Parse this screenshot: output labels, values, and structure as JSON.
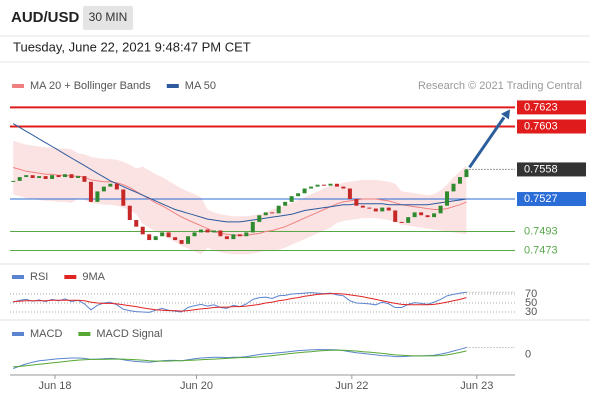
{
  "header": {
    "symbol": "AUD/USD",
    "timeframe": "30 MIN",
    "timestamp": "Tuesday, June 22, 2021 9:48:47 PM CET",
    "copyright": "Research © 2021 Trading Central"
  },
  "chart_data": [
    {
      "type": "candlestick",
      "up_color": "#2f8a2f",
      "down_color": "#c62828",
      "xlim": [
        -0.5,
        77.5
      ],
      "ylim": [
        0.7461,
        0.7636
      ],
      "values": [
        0.7546,
        0.755,
        0.7552,
        0.7549,
        0.7551,
        0.7548,
        0.7552,
        0.755,
        0.7553,
        0.7549,
        0.7551,
        0.7545,
        0.7524,
        0.7535,
        0.754,
        0.7543,
        0.7537,
        0.752,
        0.7505,
        0.7498,
        0.749,
        0.7484,
        0.7488,
        0.7492,
        0.7487,
        0.7484,
        0.748,
        0.7488,
        0.7492,
        0.7495,
        0.7492,
        0.7494,
        0.7488,
        0.7485,
        0.749,
        0.7488,
        0.7492,
        0.7503,
        0.751,
        0.7513,
        0.7512,
        0.752,
        0.7524,
        0.753,
        0.7533,
        0.7538,
        0.754,
        0.7542,
        0.7541,
        0.7543,
        0.754,
        0.7538,
        0.7527,
        0.752,
        0.7518,
        0.7517,
        0.7514,
        0.7518,
        0.7515,
        0.7503,
        0.7502,
        0.7508,
        0.7513,
        0.751,
        0.7508,
        0.7512,
        0.752,
        0.7535,
        0.7543,
        0.755,
        0.7558
      ],
      "overlays": [
        {
          "name": "MA 20 + Bollinger Bands",
          "color": "#f08080",
          "band_color": "#fadcdc",
          "values": [
            0.756,
            0.7558,
            0.7556,
            0.7555,
            0.7554,
            0.7553,
            0.7553,
            0.7552,
            0.7552,
            0.7551,
            0.7551,
            0.755,
            0.7547,
            0.7546,
            0.7545,
            0.7545,
            0.7544,
            0.7542,
            0.7539,
            0.7535,
            0.7531,
            0.7527,
            0.7523,
            0.752,
            0.7516,
            0.7512,
            0.7508,
            0.7505,
            0.7502,
            0.7499,
            0.7496,
            0.7493,
            0.7491,
            0.749,
            0.7489,
            0.7489,
            0.7489,
            0.749,
            0.7491,
            0.7493,
            0.7494,
            0.7496,
            0.7498,
            0.7501,
            0.7504,
            0.7507,
            0.751,
            0.7513,
            0.7516,
            0.7519,
            0.7522,
            0.7524,
            0.7525,
            0.7526,
            0.7527,
            0.7527,
            0.7527,
            0.7526,
            0.7525,
            0.7523,
            0.7521,
            0.752,
            0.7519,
            0.7518,
            0.7517,
            0.7516,
            0.7516,
            0.7517,
            0.7519,
            0.7521,
            0.7524
          ],
          "upper": [
            0.7588,
            0.7586,
            0.7584,
            0.7583,
            0.7582,
            0.7581,
            0.7581,
            0.758,
            0.758,
            0.7579,
            0.7575,
            0.7574,
            0.7571,
            0.757,
            0.7569,
            0.7569,
            0.7568,
            0.7566,
            0.7563,
            0.7559,
            0.7561,
            0.7557,
            0.7553,
            0.755,
            0.7546,
            0.7542,
            0.7538,
            0.7535,
            0.7532,
            0.7529,
            0.7516,
            0.7513,
            0.7511,
            0.751,
            0.7509,
            0.7509,
            0.7509,
            0.751,
            0.7511,
            0.7513,
            0.7516,
            0.7518,
            0.752,
            0.7523,
            0.7526,
            0.7529,
            0.7532,
            0.7535,
            0.7538,
            0.7541,
            0.7542,
            0.7544,
            0.7545,
            0.7546,
            0.7547,
            0.7547,
            0.7547,
            0.7546,
            0.7545,
            0.7543,
            0.7535,
            0.7534,
            0.7533,
            0.7532,
            0.7531,
            0.7532,
            0.7536,
            0.7542,
            0.755,
            0.7556,
            0.7562
          ],
          "lower": [
            0.7532,
            0.753,
            0.7528,
            0.7527,
            0.7526,
            0.7525,
            0.7525,
            0.7524,
            0.7524,
            0.7523,
            0.7527,
            0.7526,
            0.7523,
            0.7522,
            0.7521,
            0.7521,
            0.752,
            0.7518,
            0.7515,
            0.7511,
            0.7501,
            0.7497,
            0.7493,
            0.749,
            0.7486,
            0.7482,
            0.7478,
            0.7475,
            0.7472,
            0.7469,
            0.7476,
            0.7473,
            0.7471,
            0.747,
            0.7469,
            0.7469,
            0.7469,
            0.747,
            0.7471,
            0.7473,
            0.7472,
            0.7474,
            0.7476,
            0.7479,
            0.7482,
            0.7485,
            0.7488,
            0.7491,
            0.7494,
            0.7497,
            0.7502,
            0.7504,
            0.7505,
            0.7506,
            0.7507,
            0.7507,
            0.7507,
            0.7506,
            0.7505,
            0.7503,
            0.75,
            0.7499,
            0.7498,
            0.7497,
            0.7496,
            0.7495,
            0.7494,
            0.7493,
            0.7492,
            0.7491,
            0.749
          ]
        },
        {
          "name": "MA 50",
          "color": "#2d5a9c",
          "values": [
            0.7606,
            0.7602,
            0.7598,
            0.7594,
            0.759,
            0.7586,
            0.7582,
            0.7578,
            0.7574,
            0.757,
            0.7566,
            0.7562,
            0.7558,
            0.7554,
            0.755,
            0.7546,
            0.7543,
            0.754,
            0.7537,
            0.7534,
            0.7531,
            0.7528,
            0.7525,
            0.7522,
            0.7519,
            0.7516,
            0.7514,
            0.7512,
            0.751,
            0.7508,
            0.7506,
            0.7505,
            0.7504,
            0.7503,
            0.7503,
            0.7503,
            0.7504,
            0.7505,
            0.7506,
            0.7507,
            0.7508,
            0.7509,
            0.751,
            0.7511,
            0.7513,
            0.7515,
            0.7516,
            0.7517,
            0.7518,
            0.7519,
            0.752,
            0.7521,
            0.7521,
            0.7522,
            0.7522,
            0.7522,
            0.7522,
            0.7522,
            0.7521,
            0.7521,
            0.7521,
            0.7521,
            0.7521,
            0.7521,
            0.7521,
            0.7522,
            0.7523,
            0.7524,
            0.7525,
            0.7526,
            0.7527
          ]
        }
      ],
      "levels": [
        {
          "value": 0.7623,
          "color": "#e01b1b",
          "line": "solid",
          "tag": true
        },
        {
          "value": 0.7603,
          "color": "#e01b1b",
          "line": "solid",
          "tag": true
        },
        {
          "value": 0.7558,
          "color": "#333333",
          "line": "dotted",
          "tag": true
        },
        {
          "value": 0.7527,
          "color": "#2a6dd6",
          "line": "solid",
          "tag": true
        },
        {
          "value": 0.7493,
          "color": "#58a84a",
          "line": "solid",
          "tag": false
        },
        {
          "value": 0.7473,
          "color": "#58a84a",
          "line": "solid",
          "tag": false
        }
      ],
      "arrow_color": "#2d5e9c"
    },
    {
      "type": "line",
      "xlim": [
        -0.5,
        77.5
      ],
      "ylim": [
        20,
        90
      ],
      "yticks": [
        30,
        50,
        70
      ],
      "grid": true,
      "series": [
        {
          "name": "RSI",
          "color": "#5b84cf",
          "values": [
            52,
            56,
            58,
            54,
            57,
            53,
            58,
            55,
            59,
            53,
            56,
            48,
            35,
            45,
            50,
            52,
            46,
            36,
            33,
            31,
            30,
            29,
            34,
            38,
            34,
            32,
            30,
            40,
            44,
            47,
            43,
            46,
            40,
            38,
            45,
            42,
            48,
            58,
            62,
            63,
            60,
            66,
            67,
            70,
            71,
            72,
            73,
            72,
            71,
            72,
            68,
            66,
            55,
            50,
            49,
            48,
            46,
            52,
            48,
            40,
            40,
            47,
            51,
            49,
            47,
            52,
            58,
            66,
            69,
            72,
            74
          ]
        },
        {
          "name": "9MA",
          "color": "#e02424",
          "values": [
            53,
            54,
            55,
            55,
            55,
            55,
            56,
            56,
            56,
            56,
            56,
            55,
            52,
            50,
            49,
            49,
            48,
            46,
            44,
            42,
            39,
            37,
            35,
            34,
            33,
            33,
            32,
            33,
            35,
            37,
            38,
            40,
            41,
            41,
            42,
            42,
            43,
            45,
            47,
            50,
            52,
            55,
            57,
            60,
            62,
            65,
            67,
            69,
            70,
            71,
            71,
            70,
            68,
            66,
            64,
            61,
            58,
            55,
            52,
            49,
            47,
            46,
            46,
            46,
            46,
            47,
            49,
            52,
            55,
            58,
            62
          ]
        }
      ]
    },
    {
      "type": "line",
      "xlim": [
        -0.5,
        77.5
      ],
      "ylim": [
        -0.0005,
        0.0007
      ],
      "yticks": [
        0
      ],
      "grid": false,
      "xticks": [
        {
          "value": 6.45,
          "label": "Jun 18"
        },
        {
          "value": 28.3,
          "label": "Jun 20"
        },
        {
          "value": 52.3,
          "label": "Jun 22"
        },
        {
          "value": 71.6,
          "label": "Jun 23"
        }
      ],
      "series": [
        {
          "name": "MACD",
          "color": "#5b84cf",
          "values": [
            -0.0004,
            -0.00033,
            -0.00027,
            -0.00022,
            -0.00018,
            -0.00016,
            -0.00014,
            -0.00012,
            -0.00011,
            -0.0001,
            -0.0001,
            -0.00011,
            -0.00014,
            -0.00013,
            -0.00012,
            -0.00011,
            -0.00012,
            -0.00015,
            -0.00018,
            -0.0002,
            -0.00021,
            -0.00022,
            -0.0002,
            -0.00018,
            -0.00017,
            -0.00017,
            -0.00018,
            -0.00015,
            -0.00012,
            -0.0001,
            -9e-05,
            -8e-05,
            -8e-05,
            -9e-05,
            -8e-05,
            -8e-05,
            -6e-05,
            -3e-05,
            0,
            2e-05,
            3e-05,
            5e-05,
            7e-05,
            9e-05,
            0.00011,
            0.00012,
            0.00013,
            0.00014,
            0.00014,
            0.00014,
            0.00013,
            0.00011,
            8e-05,
            5e-05,
            3e-05,
            1e-05,
            -1e-05,
            -3e-05,
            -4e-05,
            -6e-05,
            -6e-05,
            -5e-05,
            -4e-05,
            -4e-05,
            -3e-05,
            -2e-05,
            1e-05,
            5e-05,
            0.0001,
            0.00015,
            0.0002
          ]
        },
        {
          "name": "MACD Signal",
          "color": "#56a832",
          "values": [
            -0.00035,
            -0.00034,
            -0.00032,
            -0.0003,
            -0.00028,
            -0.00026,
            -0.00024,
            -0.00022,
            -0.0002,
            -0.00018,
            -0.00016,
            -0.00015,
            -0.00014,
            -0.00014,
            -0.00014,
            -0.00013,
            -0.00013,
            -0.00013,
            -0.00014,
            -0.00015,
            -0.00016,
            -0.00018,
            -0.00019,
            -0.00019,
            -0.00019,
            -0.00018,
            -0.00018,
            -0.00017,
            -0.00016,
            -0.00015,
            -0.00014,
            -0.00013,
            -0.00012,
            -0.00011,
            -0.0001,
            -9e-05,
            -9e-05,
            -8e-05,
            -7e-05,
            -5e-05,
            -3e-05,
            -1e-05,
            1e-05,
            3e-05,
            5e-05,
            7e-05,
            8e-05,
            0.0001,
            0.00011,
            0.00012,
            0.00012,
            0.00012,
            0.00011,
            0.0001,
            8e-05,
            7e-05,
            5e-05,
            3e-05,
            1e-05,
            -1e-05,
            -2e-05,
            -3e-05,
            -4e-05,
            -4e-05,
            -4e-05,
            -4e-05,
            -3e-05,
            -1e-05,
            2e-05,
            6e-05,
            0.0001
          ]
        }
      ]
    }
  ]
}
